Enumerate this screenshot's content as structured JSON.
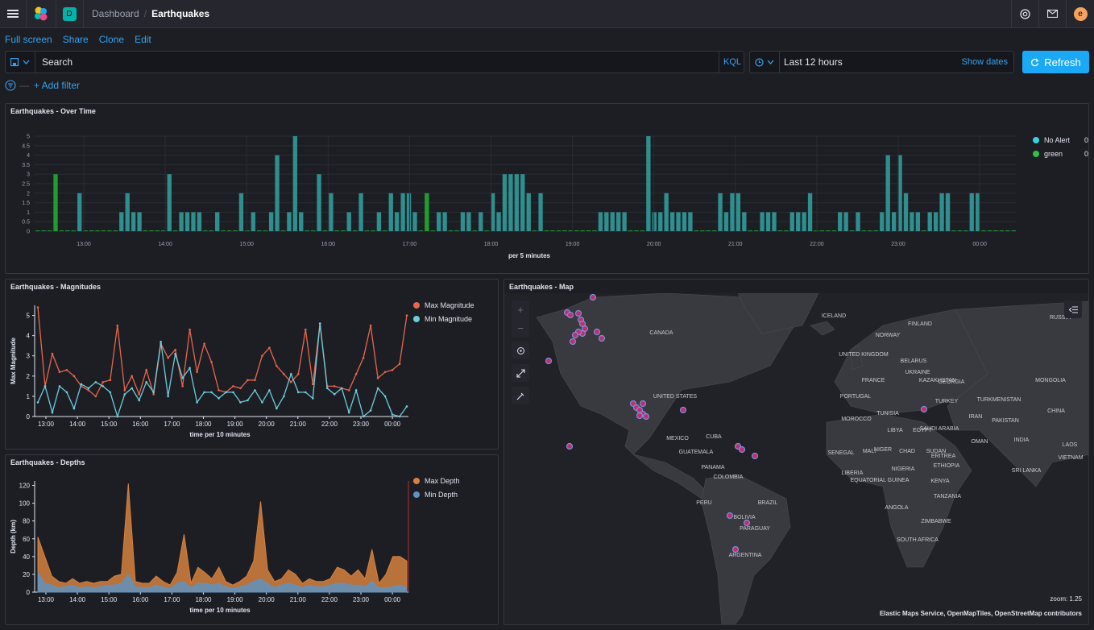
{
  "breadcrumb": {
    "parent": "Dashboard",
    "current": "Earthquakes"
  },
  "header": {
    "space_letter": "D",
    "user_initial": "e"
  },
  "actions": [
    "Full screen",
    "Share",
    "Clone",
    "Edit"
  ],
  "query": {
    "placeholder": "Search",
    "language": "KQL",
    "time_range": "Last 12 hours",
    "show_dates": "Show dates",
    "refresh_label": "Refresh"
  },
  "filter": {
    "add_label": "+ Add filter"
  },
  "colors": {
    "accent": "#1ba9f5",
    "bar": "#2f8e8e",
    "green": "#1f9e2f",
    "max_mag": "#e7664c",
    "min_mag": "#6dccdf",
    "max_depth": "#d6813f",
    "min_depth": "#6092c0"
  },
  "panels": {
    "over_time": {
      "title": "Earthquakes - Over Time",
      "xlabel": "per 5 minutes",
      "legend": [
        {
          "name": "No Alert",
          "value": "0",
          "color": "#36d4e0"
        },
        {
          "name": "green",
          "value": "0",
          "color": "#2fbf4a"
        }
      ]
    },
    "magnitudes": {
      "title": "Earthquakes - Magnitudes",
      "xlabel": "time per 10 minutes",
      "ylabel": "Max Magnitude",
      "legend": [
        {
          "name": "Max Magnitude",
          "color": "#e7664c"
        },
        {
          "name": "Min Magnitude",
          "color": "#6dccdf"
        }
      ]
    },
    "depths": {
      "title": "Earthquakes - Depths",
      "xlabel": "time per 10 minutes",
      "ylabel": "Depth (km)",
      "legend": [
        {
          "name": "Max Depth",
          "color": "#d6813f"
        },
        {
          "name": "Min Depth",
          "color": "#6092c0"
        }
      ]
    },
    "map": {
      "title": "Earthquakes - Map",
      "zoom_label": "zoom: 1.25",
      "attribution": "Elastic Maps Service, OpenMapTiles, OpenStreetMap contributors",
      "place_labels": [
        "ICELAND",
        "CANADA",
        "FINLAND",
        "RUSSIA",
        "NORWAY",
        "UNITED KINGDOM",
        "BELARUS",
        "UKRAINE",
        "KAZAKHSTAN",
        "MONGOLIA",
        "FRANCE",
        "GEORGIA",
        "PORTUGAL",
        "TURKEY",
        "TURKMENISTAN",
        "CHINA",
        "UNITED STATES",
        "MOROCCO",
        "TUNISIA",
        "IRAN",
        "PAKISTAN",
        "LIBYA",
        "EGYPT",
        "SAUDI ARABIA",
        "OMAN",
        "INDIA",
        "LAOS",
        "MEXICO",
        "CUBA",
        "NIGER",
        "SENEGAL",
        "MALI",
        "CHAD",
        "SUDAN",
        "ERITREA",
        "ETHIOPIA",
        "VIETNAM",
        "GUATEMALA",
        "NIGERIA",
        "SRI LANKA",
        "PANAMA",
        "LIBERIA",
        "EQUATORIAL GUINEA",
        "KENYA",
        "COLOMBIA",
        "TANZANIA",
        "PERU",
        "BRAZIL",
        "ANGOLA",
        "BOLIVIA",
        "ZIMBABWE",
        "PARAGUAY",
        "SOUTH AFRICA",
        "ARGENTINA"
      ]
    }
  },
  "chart_data": [
    {
      "type": "bar",
      "title": "Earthquakes - Over Time",
      "xlabel": "per 5 minutes",
      "ylim": [
        0,
        5
      ],
      "y_ticks": [
        "0",
        "0.5",
        "1",
        "1.5",
        "2",
        "2.5",
        "3",
        "3.5",
        "4",
        "4.5",
        "5"
      ],
      "x_ticks": [
        "13:00",
        "14:00",
        "15:00",
        "16:00",
        "17:00",
        "18:00",
        "19:00",
        "20:00",
        "21:00",
        "22:00",
        "23:00",
        "00:00"
      ],
      "series": [
        {
          "name": "No Alert",
          "values": [
            0,
            0,
            0,
            0,
            0,
            0,
            0,
            2,
            0,
            0,
            0,
            0,
            0,
            0,
            1,
            2,
            1,
            1,
            0,
            0,
            0,
            0,
            3,
            0,
            1,
            1,
            1,
            1,
            0,
            0,
            1,
            0,
            0,
            0,
            2,
            0,
            1,
            0,
            0,
            1,
            4,
            0,
            1,
            5,
            1,
            0,
            0,
            3,
            0,
            2,
            0,
            0,
            1,
            0,
            2,
            0,
            0,
            1,
            0,
            2,
            1,
            2,
            2,
            1,
            0,
            0,
            0,
            1,
            1,
            0,
            0,
            1,
            1,
            0,
            1,
            0,
            2,
            1,
            3,
            3,
            3,
            3,
            2,
            0,
            2,
            0,
            0,
            0,
            0,
            0,
            0,
            0,
            0,
            0,
            1,
            1,
            1,
            1,
            1,
            0,
            0,
            0,
            5,
            1,
            1,
            2,
            1,
            1,
            1,
            1,
            0,
            0,
            0,
            0,
            2,
            1,
            2,
            2,
            1,
            0,
            0,
            1,
            1,
            1,
            0,
            0,
            1,
            1,
            1,
            2,
            0,
            0,
            0,
            0,
            1,
            1,
            0,
            1,
            0,
            0,
            0,
            1,
            4,
            1,
            4,
            2,
            1,
            1,
            0,
            1,
            1,
            2,
            2,
            0,
            0,
            0,
            2,
            2,
            0,
            0,
            0,
            0,
            0,
            0
          ]
        },
        {
          "name": "green",
          "values": [
            0,
            0,
            0,
            3,
            0,
            0,
            0,
            0,
            0,
            0,
            0,
            0,
            0,
            0,
            0,
            0,
            0,
            0,
            0,
            0,
            0,
            0,
            0,
            0,
            0,
            0,
            0,
            0,
            0,
            0,
            0,
            0,
            0,
            0,
            0,
            0,
            0,
            0,
            0,
            0,
            0,
            0,
            0,
            0,
            0,
            0,
            0,
            0,
            0,
            0,
            0,
            0,
            0,
            0,
            0,
            0,
            0,
            0,
            0,
            0,
            0,
            0,
            0,
            0,
            0,
            2,
            0,
            0,
            0,
            0,
            0,
            0,
            0,
            0,
            0,
            0,
            0,
            0,
            0,
            0,
            0,
            0,
            0,
            0,
            0,
            0,
            0,
            0,
            0,
            0,
            0,
            0,
            0,
            0,
            0,
            0,
            0,
            0,
            0,
            0,
            0,
            0,
            0,
            0,
            0,
            0,
            0,
            0,
            0,
            0,
            0,
            0,
            0,
            0,
            0,
            0,
            0,
            0,
            0,
            0,
            0,
            0,
            0,
            0,
            0,
            0,
            0,
            0,
            0,
            0,
            0,
            0,
            0,
            0,
            0,
            0,
            0,
            0,
            0,
            0,
            0,
            0,
            0,
            0,
            0,
            0,
            0,
            0,
            0,
            0,
            0,
            0,
            0,
            0,
            0,
            0,
            0,
            0,
            0,
            0,
            0,
            0,
            0,
            0
          ]
        }
      ]
    },
    {
      "type": "line",
      "title": "Earthquakes - Magnitudes",
      "xlabel": "time per 10 minutes",
      "ylabel": "Max Magnitude",
      "ylim": [
        0,
        5.5
      ],
      "y_ticks": [
        "0",
        "1",
        "2",
        "3",
        "4",
        "5"
      ],
      "x_ticks": [
        "13:00",
        "14:00",
        "15:00",
        "16:00",
        "17:00",
        "18:00",
        "19:00",
        "20:00",
        "21:00",
        "22:00",
        "23:00",
        "00:00"
      ],
      "series": [
        {
          "name": "Max Magnitude",
          "values": [
            5.4,
            1.5,
            3.1,
            2.2,
            2.3,
            2.0,
            1.5,
            1.3,
            1.0,
            1.7,
            1.8,
            4.5,
            1.3,
            2.0,
            1.1,
            2.3,
            1.1,
            3.6,
            2.9,
            3.3,
            1.5,
            4.3,
            2.2,
            3.6,
            2.7,
            1.3,
            1.2,
            1.5,
            1.4,
            1.8,
            1.8,
            3.0,
            3.4,
            2.5,
            2.1,
            1.7,
            2.1,
            4.3,
            1.6,
            4.6,
            1.5,
            1.5,
            1.4,
            1.3,
            2.1,
            2.9,
            4.5,
            1.9,
            2.2,
            2.3,
            2.6,
            5.0
          ]
        },
        {
          "name": "Min Magnitude",
          "values": [
            0.7,
            1.5,
            0.2,
            1.5,
            1.2,
            0.4,
            1.6,
            1.4,
            1.7,
            1.5,
            1.2,
            0,
            1.1,
            1.4,
            0.8,
            1.7,
            1.2,
            3.7,
            1.0,
            3.1,
            1.9,
            2.4,
            0.7,
            1.2,
            1.2,
            0.9,
            1.2,
            1.2,
            0.7,
            0.8,
            1.3,
            0.7,
            1.3,
            0.4,
            1.0,
            2.1,
            1.2,
            1.2,
            0.9,
            4.6,
            1.4,
            1.1,
            1.4,
            0.2,
            1.3,
            0,
            0.3,
            1.4,
            1.0,
            0.1,
            0,
            0.5
          ]
        }
      ]
    },
    {
      "type": "area",
      "title": "Earthquakes - Depths",
      "xlabel": "time per 10 minutes",
      "ylabel": "Depth (km)",
      "ylim": [
        0,
        125
      ],
      "y_ticks": [
        "0",
        "20",
        "40",
        "60",
        "80",
        "100",
        "120"
      ],
      "x_ticks": [
        "13:00",
        "14:00",
        "15:00",
        "16:00",
        "17:00",
        "18:00",
        "19:00",
        "20:00",
        "21:00",
        "22:00",
        "23:00",
        "00:00"
      ],
      "series": [
        {
          "name": "Max Depth",
          "values": [
            62,
            40,
            18,
            12,
            10,
            15,
            10,
            12,
            10,
            12,
            12,
            18,
            20,
            122,
            12,
            10,
            10,
            18,
            12,
            8,
            22,
            65,
            10,
            28,
            22,
            15,
            28,
            12,
            8,
            12,
            18,
            35,
            102,
            25,
            12,
            15,
            25,
            20,
            10,
            15,
            12,
            12,
            15,
            28,
            25,
            18,
            25,
            15,
            48,
            10,
            20,
            40,
            40,
            35
          ]
        },
        {
          "name": "Min Depth",
          "values": [
            22,
            10,
            8,
            5,
            6,
            8,
            5,
            6,
            5,
            6,
            8,
            8,
            10,
            20,
            6,
            5,
            5,
            8,
            6,
            4,
            10,
            12,
            5,
            10,
            10,
            8,
            10,
            6,
            4,
            6,
            8,
            12,
            15,
            10,
            5,
            8,
            10,
            8,
            5,
            8,
            6,
            6,
            8,
            10,
            10,
            8,
            8,
            6,
            12,
            5,
            5,
            6,
            8,
            5
          ]
        }
      ]
    }
  ]
}
